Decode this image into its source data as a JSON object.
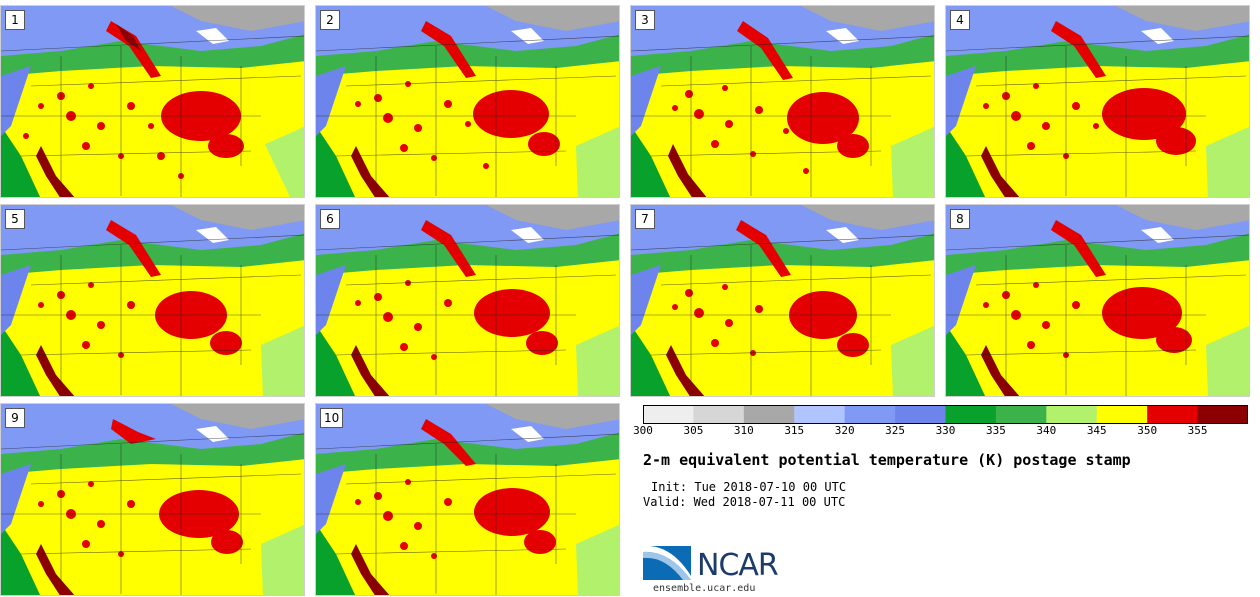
{
  "panels": [
    "1",
    "2",
    "3",
    "4",
    "5",
    "6",
    "7",
    "8",
    "9",
    "10"
  ],
  "colorbar": {
    "colors": [
      "#eeeeee",
      "#d6d6d6",
      "#a8a8a8",
      "#b0c4ff",
      "#7f99f5",
      "#6c84ec",
      "#08a12b",
      "#3cb34a",
      "#b2f16c",
      "#ffff00",
      "#e40000",
      "#8b0000"
    ],
    "ticks": [
      "300",
      "305",
      "310",
      "315",
      "320",
      "325",
      "330",
      "335",
      "340",
      "345",
      "350",
      "355"
    ]
  },
  "title": "2-m equivalent potential temperature (K) postage stamp",
  "init": "Init: Tue 2018-07-10 00 UTC",
  "valid": "Valid: Wed 2018-07-11 00 UTC",
  "logo": {
    "name": "NCAR",
    "url": "ensemble.ucar.edu"
  }
}
